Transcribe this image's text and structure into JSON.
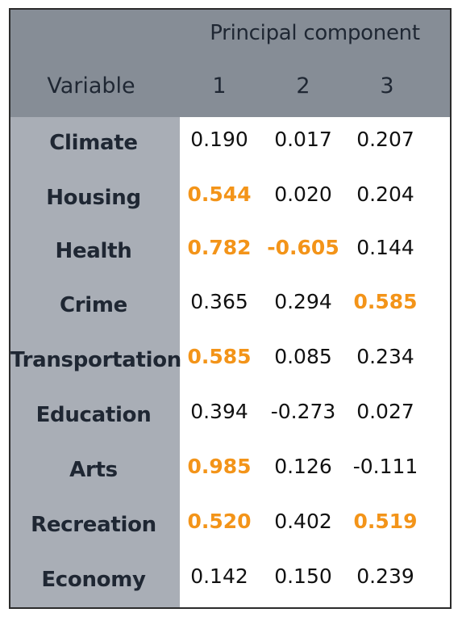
{
  "table": {
    "group_header": "Principal component",
    "variable_header": "Variable",
    "component_headers": [
      "1",
      "2",
      "3"
    ],
    "highlight_color": "#f39419",
    "rows": [
      {
        "label": "Climate",
        "values": [
          "0.190",
          "0.017",
          "0.207"
        ],
        "highlighted": [
          false,
          false,
          false
        ]
      },
      {
        "label": "Housing",
        "values": [
          "0.544",
          "0.020",
          "0.204"
        ],
        "highlighted": [
          true,
          false,
          false
        ]
      },
      {
        "label": "Health",
        "values": [
          "0.782",
          "-0.605",
          "0.144"
        ],
        "highlighted": [
          true,
          true,
          false
        ]
      },
      {
        "label": "Crime",
        "values": [
          "0.365",
          "0.294",
          "0.585"
        ],
        "highlighted": [
          false,
          false,
          true
        ]
      },
      {
        "label": "Transportation",
        "values": [
          "0.585",
          "0.085",
          "0.234"
        ],
        "highlighted": [
          true,
          false,
          false
        ]
      },
      {
        "label": "Education",
        "values": [
          "0.394",
          "-0.273",
          "0.027"
        ],
        "highlighted": [
          false,
          false,
          false
        ]
      },
      {
        "label": "Arts",
        "values": [
          "0.985",
          "0.126",
          "-0.111"
        ],
        "highlighted": [
          true,
          false,
          false
        ]
      },
      {
        "label": "Recreation",
        "values": [
          "0.520",
          "0.402",
          "0.519"
        ],
        "highlighted": [
          true,
          false,
          true
        ]
      },
      {
        "label": "Economy",
        "values": [
          "0.142",
          "0.150",
          "0.239"
        ],
        "highlighted": [
          false,
          false,
          false
        ]
      }
    ]
  }
}
